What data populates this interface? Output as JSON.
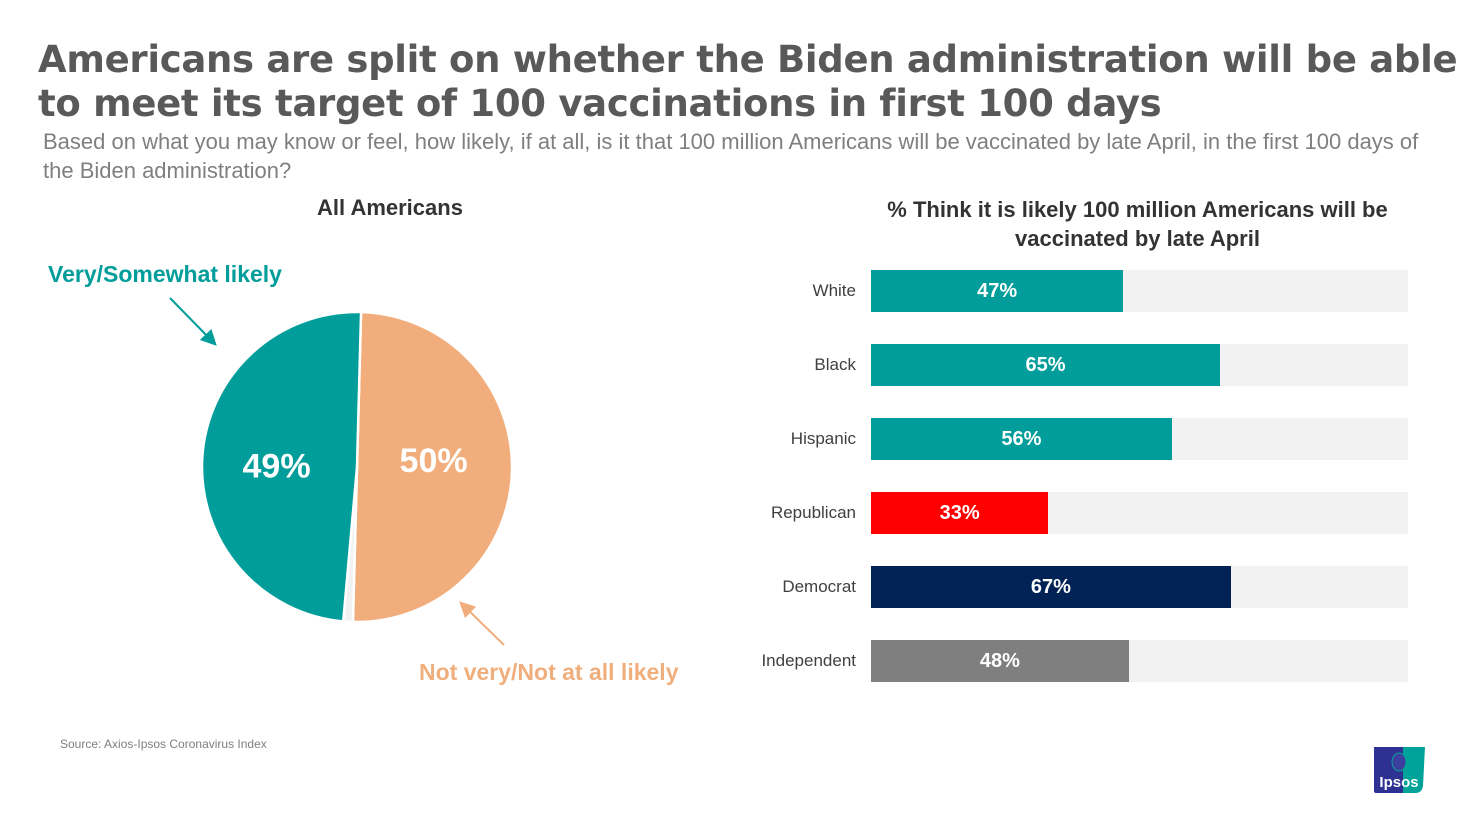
{
  "header": {
    "title": "Americans are split on whether the Biden administration will be able to meet its target of 100 vaccinations in first 100 days",
    "subtitle": "Based on what you may know or feel, how likely, if at all, is it that 100 million Americans will be vaccinated by late April, in the first 100 days of the Biden administration?"
  },
  "footer": {
    "source": "Source: Axios-Ipsos Coronavirus Index",
    "logo_text": "Ipsos"
  },
  "chart_data": [
    {
      "type": "pie",
      "title": "All Americans",
      "slices": [
        {
          "label": "Very/Somewhat likely",
          "value": 49,
          "display": "49%",
          "color": "#009d9a"
        },
        {
          "label": "Not very/Not at all likely",
          "value": 50,
          "display": "50%",
          "color": "#f1ae7c"
        },
        {
          "label": "",
          "value": 1,
          "display": "",
          "color": "#f2f2f2"
        }
      ],
      "callouts": {
        "likely": "Very/Somewhat likely",
        "unlikely": "Not very/Not at all likely"
      }
    },
    {
      "type": "bar",
      "orientation": "horizontal",
      "title": "% Think it is likely 100 million Americans will be vaccinated by late April",
      "xlim": [
        0,
        100
      ],
      "categories": [
        "White",
        "Black",
        "Hispanic",
        "Republican",
        "Democrat",
        "Independent"
      ],
      "values": [
        47,
        65,
        56,
        33,
        67,
        48
      ],
      "labels": [
        "47%",
        "65%",
        "56%",
        "33%",
        "67%",
        "48%"
      ],
      "colors": [
        "#009d9a",
        "#009d9a",
        "#009d9a",
        "#ff0000",
        "#002255",
        "#7f7f7f"
      ],
      "track_color": "#f2f2f2"
    }
  ]
}
